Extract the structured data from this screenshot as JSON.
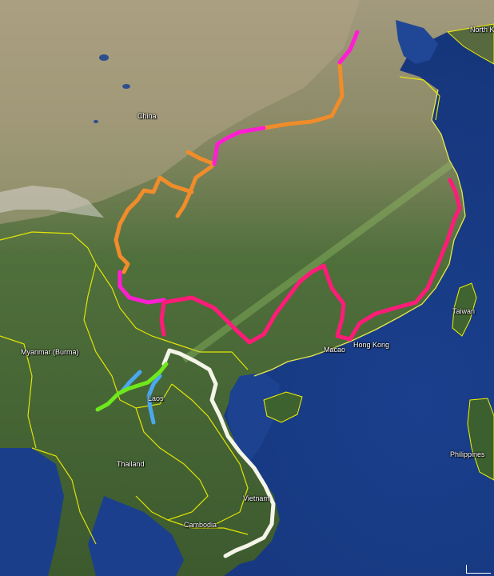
{
  "map": {
    "labels": {
      "china": "China",
      "myanmar": "Myanmar (Burma)",
      "laos": "Laos",
      "thailand": "Thailand",
      "vietnam": "Vietnam",
      "cambodia": "Cambodia",
      "macao": "Macao",
      "hong_kong": "Hong Kong",
      "taiwan": "Taiwan",
      "philippines": "Philippines",
      "north_korea": "North K"
    },
    "route_colors": {
      "orange": "#f08c2a",
      "magenta": "#ff1ed2",
      "pink": "#ff1c78",
      "white": "#f4f4e8",
      "blue": "#4aa8ee",
      "green": "#6ee81c",
      "border": "#f2f200"
    }
  }
}
